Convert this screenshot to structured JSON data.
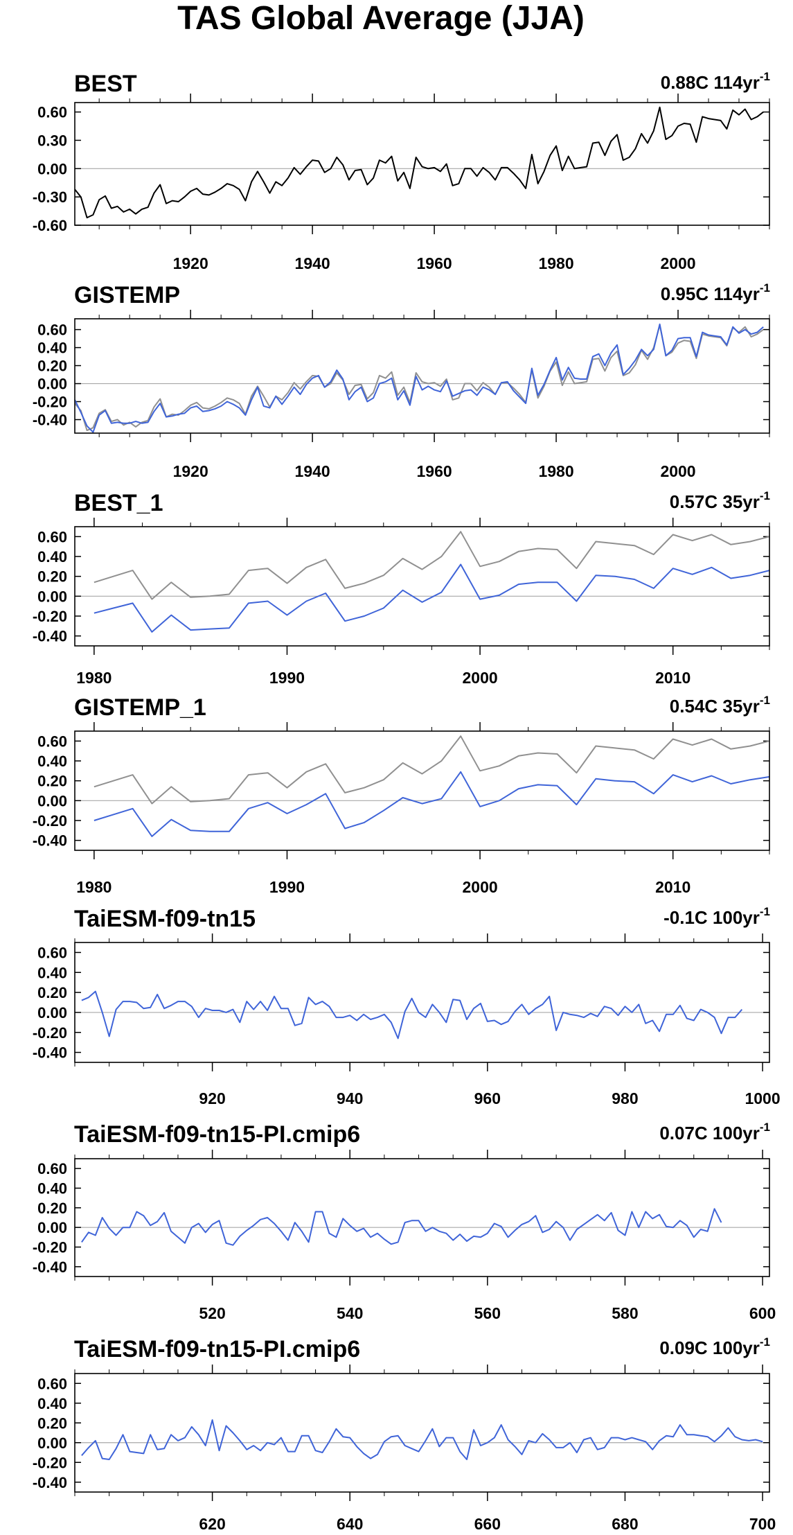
{
  "figure_title": "TAS Global Average (JJA)",
  "colors": {
    "obs": "#000000",
    "obs_ref": "#909090",
    "model": "#3f64d8",
    "zero": "#a8a8a8",
    "frame": "#000000"
  },
  "chart_data": [
    {
      "type": "line",
      "title": "BEST",
      "trend": {
        "value": "0.88C",
        "period": "114yr",
        "exp": "-1"
      },
      "xlim": [
        1901,
        2015
      ],
      "ylim": [
        -0.6,
        0.7
      ],
      "yticks": [
        "0.60",
        "0.30",
        "0.00",
        "-0.30",
        "-0.60"
      ],
      "ytick_values": [
        0.6,
        0.3,
        0.0,
        -0.3,
        -0.6
      ],
      "xticks": [
        1920,
        1940,
        1960,
        1980,
        2000
      ],
      "x_start": 1901,
      "series": [
        {
          "color": "obs",
          "values": [
            -0.22,
            -0.3,
            -0.52,
            -0.49,
            -0.33,
            -0.29,
            -0.42,
            -0.4,
            -0.46,
            -0.43,
            -0.48,
            -0.43,
            -0.41,
            -0.26,
            -0.17,
            -0.37,
            -0.34,
            -0.35,
            -0.3,
            -0.24,
            -0.21,
            -0.27,
            -0.28,
            -0.25,
            -0.21,
            -0.16,
            -0.18,
            -0.22,
            -0.34,
            -0.14,
            -0.03,
            -0.14,
            -0.26,
            -0.14,
            -0.18,
            -0.1,
            0.01,
            -0.06,
            0.02,
            0.09,
            0.08,
            -0.04,
            0.0,
            0.12,
            0.04,
            -0.12,
            -0.02,
            -0.01,
            -0.17,
            -0.1,
            0.09,
            0.06,
            0.13,
            -0.13,
            -0.04,
            -0.21,
            0.12,
            0.02,
            0.0,
            0.01,
            -0.03,
            0.05,
            -0.18,
            -0.16,
            0.0,
            0.0,
            -0.08,
            0.01,
            -0.04,
            -0.12,
            0.01,
            0.01,
            -0.05,
            -0.12,
            -0.21,
            0.15,
            -0.16,
            -0.03,
            0.14,
            0.24,
            -0.02,
            0.13,
            0.0,
            0.01,
            0.02,
            0.27,
            0.28,
            0.14,
            0.29,
            0.36,
            0.09,
            0.12,
            0.21,
            0.37,
            0.27,
            0.4,
            0.65,
            0.31,
            0.35,
            0.45,
            0.48,
            0.47,
            0.28,
            0.55,
            0.53,
            0.52,
            0.51,
            0.42,
            0.62,
            0.57,
            0.63,
            0.52,
            0.55,
            0.6
          ]
        }
      ]
    },
    {
      "type": "line",
      "title": "GISTEMP",
      "trend": {
        "value": "0.95C",
        "period": "114yr",
        "exp": "-1"
      },
      "xlim": [
        1901,
        2015
      ],
      "ylim": [
        -0.55,
        0.72
      ],
      "yticks": [
        "0.60",
        "0.40",
        "0.20",
        "0.00",
        "-0.20",
        "-0.40"
      ],
      "ytick_values": [
        0.6,
        0.4,
        0.2,
        0.0,
        -0.2,
        -0.4
      ],
      "xticks": [
        1920,
        1940,
        1960,
        1980,
        2000
      ],
      "x_start": 1901,
      "series": [
        {
          "color": "obs_ref",
          "values": [
            -0.22,
            -0.3,
            -0.52,
            -0.49,
            -0.33,
            -0.29,
            -0.42,
            -0.4,
            -0.46,
            -0.43,
            -0.48,
            -0.43,
            -0.41,
            -0.26,
            -0.17,
            -0.37,
            -0.34,
            -0.35,
            -0.3,
            -0.24,
            -0.21,
            -0.27,
            -0.28,
            -0.25,
            -0.21,
            -0.16,
            -0.18,
            -0.22,
            -0.34,
            -0.14,
            -0.03,
            -0.14,
            -0.26,
            -0.14,
            -0.18,
            -0.1,
            0.01,
            -0.06,
            0.02,
            0.09,
            0.08,
            -0.04,
            0.0,
            0.12,
            0.04,
            -0.12,
            -0.02,
            -0.01,
            -0.17,
            -0.1,
            0.09,
            0.06,
            0.13,
            -0.13,
            -0.04,
            -0.21,
            0.12,
            0.02,
            0.0,
            0.01,
            -0.03,
            0.05,
            -0.18,
            -0.16,
            0.0,
            0.0,
            -0.08,
            0.01,
            -0.04,
            -0.12,
            0.01,
            0.01,
            -0.05,
            -0.12,
            -0.21,
            0.15,
            -0.16,
            -0.03,
            0.14,
            0.24,
            -0.02,
            0.13,
            0.0,
            0.01,
            0.02,
            0.27,
            0.28,
            0.14,
            0.29,
            0.36,
            0.09,
            0.12,
            0.21,
            0.37,
            0.27,
            0.4,
            0.65,
            0.31,
            0.35,
            0.45,
            0.48,
            0.47,
            0.28,
            0.55,
            0.53,
            0.52,
            0.51,
            0.42,
            0.62,
            0.57,
            0.63,
            0.52,
            0.55,
            0.6
          ]
        },
        {
          "color": "model",
          "values": [
            -0.18,
            -0.32,
            -0.47,
            -0.54,
            -0.35,
            -0.3,
            -0.44,
            -0.43,
            -0.44,
            -0.44,
            -0.42,
            -0.44,
            -0.43,
            -0.31,
            -0.22,
            -0.37,
            -0.36,
            -0.34,
            -0.33,
            -0.27,
            -0.25,
            -0.31,
            -0.3,
            -0.28,
            -0.25,
            -0.2,
            -0.23,
            -0.27,
            -0.35,
            -0.18,
            -0.04,
            -0.25,
            -0.27,
            -0.14,
            -0.23,
            -0.14,
            -0.04,
            -0.12,
            -0.01,
            0.06,
            0.09,
            -0.04,
            0.02,
            0.15,
            0.05,
            -0.18,
            -0.09,
            -0.04,
            -0.2,
            -0.16,
            0.0,
            0.02,
            0.06,
            -0.18,
            -0.08,
            -0.24,
            0.08,
            -0.07,
            -0.03,
            -0.07,
            -0.09,
            0.03,
            -0.14,
            -0.11,
            -0.08,
            -0.07,
            -0.13,
            -0.04,
            -0.07,
            -0.12,
            0.01,
            0.02,
            -0.08,
            -0.15,
            -0.22,
            0.17,
            -0.13,
            -0.01,
            0.15,
            0.29,
            0.04,
            0.18,
            0.06,
            0.05,
            0.05,
            0.3,
            0.33,
            0.2,
            0.34,
            0.43,
            0.1,
            0.17,
            0.26,
            0.38,
            0.31,
            0.38,
            0.66,
            0.31,
            0.37,
            0.5,
            0.51,
            0.51,
            0.3,
            0.57,
            0.54,
            0.53,
            0.52,
            0.43,
            0.63,
            0.56,
            0.6,
            0.55,
            0.57,
            0.63
          ]
        }
      ]
    },
    {
      "type": "line",
      "title": "BEST_1",
      "trend": {
        "value": "0.57C",
        "period": "35yr",
        "exp": "-1"
      },
      "xlim": [
        1979,
        2015
      ],
      "ylim": [
        -0.5,
        0.7
      ],
      "yticks": [
        "0.60",
        "0.40",
        "0.20",
        "0.00",
        "-0.20",
        "-0.40"
      ],
      "ytick_values": [
        0.6,
        0.4,
        0.2,
        0.0,
        -0.2,
        -0.4
      ],
      "xticks": [
        1980,
        1990,
        2000,
        2010
      ],
      "x_start": 1980,
      "series": [
        {
          "color": "obs_ref",
          "values": [
            0.14,
            0.2,
            0.26,
            -0.03,
            0.14,
            -0.01,
            0.0,
            0.02,
            0.26,
            0.28,
            0.13,
            0.29,
            0.37,
            0.08,
            0.13,
            0.21,
            0.38,
            0.27,
            0.4,
            0.65,
            0.3,
            0.35,
            0.45,
            0.48,
            0.47,
            0.28,
            0.55,
            0.53,
            0.51,
            0.42,
            0.62,
            0.56,
            0.62,
            0.52,
            0.55,
            0.6
          ]
        },
        {
          "color": "model",
          "values": [
            -0.17,
            -0.12,
            -0.07,
            -0.36,
            -0.19,
            -0.34,
            -0.33,
            -0.32,
            -0.07,
            -0.05,
            -0.19,
            -0.05,
            0.03,
            -0.25,
            -0.2,
            -0.12,
            0.06,
            -0.06,
            0.04,
            0.32,
            -0.03,
            0.01,
            0.12,
            0.14,
            0.14,
            -0.05,
            0.21,
            0.2,
            0.17,
            0.08,
            0.28,
            0.22,
            0.29,
            0.18,
            0.21,
            0.26
          ]
        }
      ]
    },
    {
      "type": "line",
      "title": "GISTEMP_1",
      "trend": {
        "value": "0.54C",
        "period": "35yr",
        "exp": "-1"
      },
      "xlim": [
        1979,
        2015
      ],
      "ylim": [
        -0.5,
        0.7
      ],
      "yticks": [
        "0.60",
        "0.40",
        "0.20",
        "0.00",
        "-0.20",
        "-0.40"
      ],
      "ytick_values": [
        0.6,
        0.4,
        0.2,
        0.0,
        -0.2,
        -0.4
      ],
      "xticks": [
        1980,
        1990,
        2000,
        2010
      ],
      "x_start": 1980,
      "series": [
        {
          "color": "obs_ref",
          "values": [
            0.14,
            0.2,
            0.26,
            -0.03,
            0.14,
            -0.01,
            0.0,
            0.02,
            0.26,
            0.28,
            0.13,
            0.29,
            0.37,
            0.08,
            0.13,
            0.21,
            0.38,
            0.27,
            0.4,
            0.65,
            0.3,
            0.35,
            0.45,
            0.48,
            0.47,
            0.28,
            0.55,
            0.53,
            0.51,
            0.42,
            0.62,
            0.56,
            0.62,
            0.52,
            0.55,
            0.6
          ]
        },
        {
          "color": "model",
          "values": [
            -0.2,
            -0.14,
            -0.08,
            -0.36,
            -0.19,
            -0.3,
            -0.31,
            -0.31,
            -0.08,
            -0.02,
            -0.13,
            -0.04,
            0.07,
            -0.28,
            -0.22,
            -0.1,
            0.03,
            -0.03,
            0.02,
            0.29,
            -0.06,
            0.0,
            0.12,
            0.16,
            0.15,
            -0.04,
            0.22,
            0.2,
            0.19,
            0.07,
            0.26,
            0.19,
            0.25,
            0.17,
            0.21,
            0.24
          ]
        }
      ]
    },
    {
      "type": "line",
      "title": "TaiESM-f09-tn15",
      "trend": {
        "value": "-0.1C",
        "period": "100yr",
        "exp": "-1"
      },
      "xlim": [
        900,
        1001
      ],
      "ylim": [
        -0.5,
        0.7
      ],
      "yticks": [
        "0.60",
        "0.40",
        "0.20",
        "0.00",
        "-0.20",
        "-0.40"
      ],
      "ytick_values": [
        0.6,
        0.4,
        0.2,
        0.0,
        -0.2,
        -0.4
      ],
      "xticks": [
        920,
        940,
        960,
        980,
        1000
      ],
      "x_start": 901,
      "series": [
        {
          "color": "model",
          "values": [
            0.12,
            0.15,
            0.21,
            0.0,
            -0.24,
            0.03,
            0.11,
            0.11,
            0.1,
            0.04,
            0.05,
            0.18,
            0.04,
            0.07,
            0.11,
            0.11,
            0.06,
            -0.05,
            0.04,
            0.02,
            0.02,
            0.0,
            0.03,
            -0.1,
            0.11,
            0.03,
            0.11,
            0.02,
            0.16,
            0.04,
            0.04,
            -0.13,
            -0.11,
            0.15,
            0.08,
            0.11,
            0.06,
            -0.05,
            -0.05,
            -0.03,
            -0.08,
            -0.02,
            -0.07,
            -0.05,
            -0.02,
            -0.1,
            -0.26,
            0.01,
            0.14,
            0.0,
            -0.05,
            0.08,
            0.0,
            -0.1,
            0.13,
            0.12,
            -0.07,
            0.04,
            0.09,
            -0.09,
            -0.08,
            -0.12,
            -0.09,
            0.01,
            0.08,
            -0.02,
            0.04,
            0.08,
            0.16,
            -0.18,
            0.0,
            -0.02,
            -0.03,
            -0.05,
            -0.01,
            -0.04,
            0.06,
            0.04,
            -0.03,
            0.06,
            0.0,
            0.08,
            -0.11,
            -0.08,
            -0.19,
            -0.02,
            -0.02,
            0.07,
            -0.06,
            -0.08,
            0.03,
            0.0,
            -0.05,
            -0.21,
            -0.05,
            -0.05,
            0.03
          ]
        }
      ]
    },
    {
      "type": "line",
      "title": "TaiESM-f09-tn15-PI.cmip6",
      "trend": {
        "value": "0.07C",
        "period": "100yr",
        "exp": "-1"
      },
      "xlim": [
        500,
        601
      ],
      "ylim": [
        -0.5,
        0.7
      ],
      "yticks": [
        "0.60",
        "0.40",
        "0.20",
        "0.00",
        "-0.20",
        "-0.40"
      ],
      "ytick_values": [
        0.6,
        0.4,
        0.2,
        0.0,
        -0.2,
        -0.4
      ],
      "xticks": [
        520,
        540,
        560,
        580,
        600
      ],
      "x_start": 501,
      "series": [
        {
          "color": "model",
          "values": [
            -0.15,
            -0.05,
            -0.08,
            0.1,
            -0.01,
            -0.08,
            0.0,
            0.0,
            0.16,
            0.12,
            0.02,
            0.06,
            0.15,
            -0.04,
            -0.1,
            -0.16,
            0.0,
            0.04,
            -0.05,
            0.03,
            0.07,
            -0.16,
            -0.18,
            -0.09,
            -0.03,
            0.02,
            0.08,
            0.1,
            0.04,
            -0.04,
            -0.13,
            0.05,
            -0.04,
            -0.15,
            0.16,
            0.16,
            -0.06,
            -0.1,
            0.09,
            0.02,
            -0.04,
            -0.01,
            -0.1,
            -0.06,
            -0.12,
            -0.17,
            -0.15,
            0.05,
            0.07,
            0.07,
            -0.04,
            0.0,
            -0.04,
            -0.06,
            -0.13,
            -0.07,
            -0.14,
            -0.09,
            -0.1,
            -0.06,
            0.04,
            0.01,
            -0.1,
            -0.03,
            0.03,
            0.06,
            0.12,
            -0.05,
            -0.02,
            0.06,
            0.0,
            -0.13,
            -0.02,
            0.03,
            0.08,
            0.13,
            0.07,
            0.15,
            -0.03,
            -0.08,
            0.16,
            0.0,
            0.16,
            0.09,
            0.13,
            0.01,
            0.0,
            0.07,
            0.02,
            -0.1,
            -0.02,
            -0.04,
            0.19,
            0.05
          ]
        }
      ]
    },
    {
      "type": "line",
      "title": "TaiESM-f09-tn15-PI.cmip6",
      "trend": {
        "value": "0.09C",
        "period": "100yr",
        "exp": "-1"
      },
      "xlim": [
        600,
        701
      ],
      "ylim": [
        -0.5,
        0.7
      ],
      "yticks": [
        "0.60",
        "0.40",
        "0.20",
        "0.00",
        "-0.20",
        "-0.40"
      ],
      "ytick_values": [
        0.6,
        0.4,
        0.2,
        0.0,
        -0.2,
        -0.4
      ],
      "xticks": [
        620,
        640,
        660,
        680,
        700
      ],
      "x_start": 601,
      "series": [
        {
          "color": "model",
          "values": [
            -0.13,
            -0.05,
            0.02,
            -0.16,
            -0.17,
            -0.06,
            0.08,
            -0.09,
            -0.1,
            -0.11,
            0.08,
            -0.07,
            -0.06,
            0.08,
            0.02,
            0.05,
            0.16,
            0.08,
            -0.03,
            0.23,
            -0.08,
            0.17,
            0.1,
            0.02,
            -0.07,
            -0.03,
            -0.08,
            0.0,
            -0.02,
            0.05,
            -0.09,
            -0.09,
            0.07,
            0.07,
            -0.08,
            -0.1,
            0.01,
            0.14,
            0.06,
            0.05,
            -0.04,
            -0.11,
            -0.16,
            -0.12,
            0.01,
            0.06,
            0.07,
            -0.03,
            -0.06,
            -0.09,
            0.02,
            0.14,
            -0.04,
            0.05,
            0.05,
            -0.09,
            -0.17,
            0.13,
            -0.03,
            0.0,
            0.05,
            0.18,
            0.03,
            -0.04,
            -0.12,
            0.02,
            0.0,
            0.09,
            0.03,
            -0.05,
            -0.05,
            0.0,
            -0.1,
            0.03,
            0.05,
            -0.07,
            -0.05,
            0.05,
            0.05,
            0.03,
            0.05,
            0.03,
            0.01,
            -0.07,
            0.02,
            0.07,
            0.06,
            0.18,
            0.08,
            0.08,
            0.07,
            0.06,
            0.01,
            0.07,
            0.15,
            0.06,
            0.03,
            0.02,
            0.03,
            0.01
          ]
        }
      ]
    }
  ]
}
